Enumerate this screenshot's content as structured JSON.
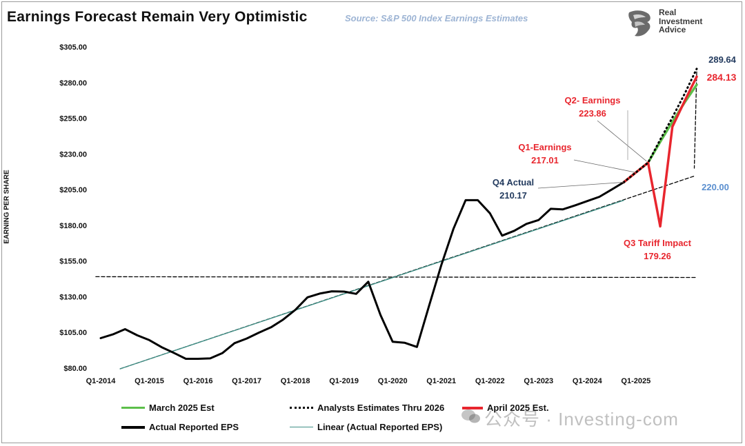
{
  "header": {
    "title": "Earnings Forecast Remain Very Optimistic",
    "source": "Source: S&P 500 Index Earnings Estimates",
    "logo_line1": "Real",
    "logo_line2": "Investment",
    "logo_line3": "Advice"
  },
  "watermark": "公众号 · Investing-com",
  "colors": {
    "actual": "#000000",
    "march_est": "#5cbf4a",
    "april_est": "#e8262e",
    "linear": "#3f8f86",
    "navy": "#223a5e",
    "red_label": "#e8262e",
    "light_blue": "#5b8fcf"
  },
  "chart_data": {
    "type": "line",
    "title": "Earnings Forecast Remain Very Optimistic",
    "ylabel": "EARNING PER SHARE",
    "ylim": [
      80,
      305
    ],
    "yticks": [
      80,
      105,
      130,
      155,
      180,
      205,
      230,
      255,
      280,
      305
    ],
    "ytick_labels": [
      "$80.00",
      "$105.00",
      "$130.00",
      "$155.00",
      "$180.00",
      "$205.00",
      "$230.00",
      "$255.00",
      "$280.00",
      "$305.00"
    ],
    "xlim": [
      2014.0,
      2026.25
    ],
    "xticks": [
      2014,
      2015,
      2016,
      2017,
      2018,
      2019,
      2020,
      2021,
      2022,
      2023,
      2024,
      2025
    ],
    "xtick_labels": [
      "Q1-2014",
      "Q1-2015",
      "Q1-2016",
      "Q1-2017",
      "Q1-2018",
      "Q1-2019",
      "Q1-2020",
      "Q1-2021",
      "Q1-2022",
      "Q1-2023",
      "Q1-2024",
      "Q1-2025"
    ],
    "series": [
      {
        "name": "Actual Reported EPS",
        "style": "solid-thick",
        "color": "#000000",
        "x": [
          2014.0,
          2014.25,
          2014.5,
          2014.75,
          2015.0,
          2015.25,
          2015.5,
          2015.75,
          2016.0,
          2016.25,
          2016.5,
          2016.75,
          2017.0,
          2017.25,
          2017.5,
          2017.75,
          2018.0,
          2018.25,
          2018.5,
          2018.75,
          2019.0,
          2019.25,
          2019.5,
          2019.75,
          2020.0,
          2020.25,
          2020.5,
          2020.75,
          2021.0,
          2021.25,
          2021.5,
          2021.75,
          2022.0,
          2022.25,
          2022.5,
          2022.75,
          2023.0,
          2023.25,
          2023.5,
          2023.75,
          2024.0,
          2024.25,
          2024.5,
          2024.75
        ],
        "values": [
          101.0,
          103.6,
          107.3,
          103.0,
          99.6,
          94.7,
          90.7,
          86.5,
          86.5,
          86.8,
          90.5,
          97.5,
          100.7,
          104.8,
          108.6,
          114.0,
          120.8,
          129.6,
          132.2,
          133.8,
          133.6,
          132.0,
          140.5,
          117.2,
          98.5,
          97.7,
          94.8,
          123.8,
          152.1,
          177.5,
          197.6,
          197.6,
          188.5,
          172.8,
          176.2,
          181.0,
          183.7,
          191.6,
          191.2,
          194.0,
          197.0,
          200.0,
          205.0,
          210.17
        ]
      },
      {
        "name": "March 2025 Est",
        "style": "solid",
        "color": "#5cbf4a",
        "x": [
          2024.75,
          2025.0,
          2025.25,
          2025.5,
          2025.75,
          2026.0,
          2026.25
        ],
        "values": [
          210.17,
          217.01,
          223.86,
          238.5,
          252.5,
          266.0,
          278.5
        ]
      },
      {
        "name": "Analysts Estimates Thru 2026",
        "style": "dotted",
        "color": "#000000",
        "x": [
          2024.75,
          2025.0,
          2025.25,
          2025.5,
          2025.75,
          2026.0,
          2026.25
        ],
        "values": [
          210.17,
          217.01,
          223.86,
          240.0,
          255.5,
          272.0,
          289.64
        ]
      },
      {
        "name": "April 2025 Est.",
        "style": "solid-thick",
        "color": "#e8262e",
        "x": [
          2024.75,
          2025.0,
          2025.25,
          2025.5,
          2025.75,
          2026.0,
          2026.25
        ],
        "values": [
          210.17,
          217.01,
          223.86,
          179.26,
          249.0,
          267.0,
          284.13
        ]
      },
      {
        "name": "Linear (Actual Reported EPS)",
        "style": "thin",
        "color": "#3f8f86",
        "x": [
          2014.4,
          2024.75
        ],
        "values": [
          79.5,
          197.5
        ]
      }
    ],
    "reference_lines": [
      {
        "name": "Horizontal dashed line",
        "x": [
          2013.9,
          2026.25
        ],
        "values": [
          144.0,
          143.5
        ]
      },
      {
        "name": "Trend extension dashed line",
        "x": [
          2014.4,
          2026.2
        ],
        "values": [
          79.5,
          214.5
        ]
      },
      {
        "name": "Vertical dashed drop",
        "x": [
          2026.25,
          2026.2
        ],
        "values": [
          287.5,
          220.0
        ]
      }
    ],
    "annotations": [
      {
        "name": "q4-actual",
        "line1": "Q4 Actual",
        "line2": "210.17",
        "color": "navy",
        "point_x": 2024.75,
        "point_y": 210.17
      },
      {
        "name": "q1-earnings",
        "line1": "Q1-Earnings",
        "line2": "217.01",
        "color": "red",
        "point_x": 2025.0,
        "point_y": 217.01
      },
      {
        "name": "q2-earnings",
        "line1": "Q2- Earnings",
        "line2": "223.86",
        "color": "red",
        "point_x": 2025.25,
        "point_y": 223.86
      },
      {
        "name": "q3-tariff",
        "line1": "Q3 Tariff Impact",
        "line2": "179.26",
        "color": "red",
        "point_x": 2025.5,
        "point_y": 179.26
      },
      {
        "name": "end-289",
        "line1": "289.64",
        "color": "navy"
      },
      {
        "name": "end-284",
        "line1": "284.13",
        "color": "red"
      },
      {
        "name": "end-220",
        "line1": "220.00",
        "color": "light_blue"
      }
    ],
    "legend": [
      {
        "label": "March 2025 Est",
        "style": "solid",
        "color": "#5cbf4a"
      },
      {
        "label": "Analysts Estimates Thru 2026",
        "style": "dotted",
        "color": "#000000"
      },
      {
        "label": "April 2025 Est.",
        "style": "solid-thick",
        "color": "#e8262e"
      },
      {
        "label": "Actual Reported EPS",
        "style": "solid-thick",
        "color": "#000000"
      },
      {
        "label": "Linear (Actual Reported EPS)",
        "style": "thin",
        "color": "#3f8f86"
      }
    ],
    "legend_position": "bottom"
  }
}
